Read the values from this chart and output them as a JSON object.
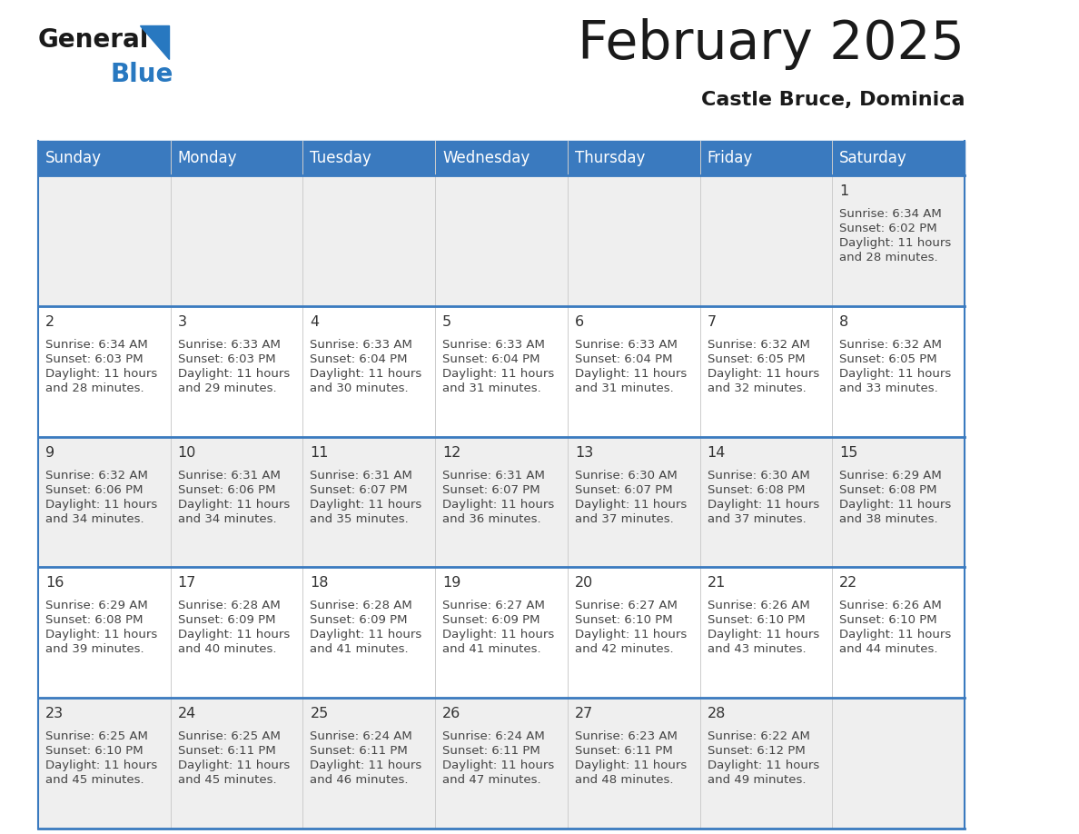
{
  "title": "February 2025",
  "subtitle": "Castle Bruce, Dominica",
  "days_of_week": [
    "Sunday",
    "Monday",
    "Tuesday",
    "Wednesday",
    "Thursday",
    "Friday",
    "Saturday"
  ],
  "header_bg": "#3a7abf",
  "header_text": "#ffffff",
  "row_bg_even": "#efefef",
  "row_bg_odd": "#ffffff",
  "border_color": "#3a7abf",
  "cell_divider_color": "#cccccc",
  "day_number_color": "#333333",
  "cell_text_color": "#444444",
  "title_color": "#1a1a1a",
  "subtitle_color": "#1a1a1a",
  "logo_black": "#1a1a1a",
  "logo_blue": "#2878c0",
  "logo_triangle": "#2878c0",
  "calendar": [
    [
      null,
      null,
      null,
      null,
      null,
      null,
      {
        "day": 1,
        "sunrise": "6:34 AM",
        "sunset": "6:02 PM",
        "daylight": "11 hours",
        "daylight2": "and 28 minutes."
      }
    ],
    [
      {
        "day": 2,
        "sunrise": "6:34 AM",
        "sunset": "6:03 PM",
        "daylight": "11 hours",
        "daylight2": "and 28 minutes."
      },
      {
        "day": 3,
        "sunrise": "6:33 AM",
        "sunset": "6:03 PM",
        "daylight": "11 hours",
        "daylight2": "and 29 minutes."
      },
      {
        "day": 4,
        "sunrise": "6:33 AM",
        "sunset": "6:04 PM",
        "daylight": "11 hours",
        "daylight2": "and 30 minutes."
      },
      {
        "day": 5,
        "sunrise": "6:33 AM",
        "sunset": "6:04 PM",
        "daylight": "11 hours",
        "daylight2": "and 31 minutes."
      },
      {
        "day": 6,
        "sunrise": "6:33 AM",
        "sunset": "6:04 PM",
        "daylight": "11 hours",
        "daylight2": "and 31 minutes."
      },
      {
        "day": 7,
        "sunrise": "6:32 AM",
        "sunset": "6:05 PM",
        "daylight": "11 hours",
        "daylight2": "and 32 minutes."
      },
      {
        "day": 8,
        "sunrise": "6:32 AM",
        "sunset": "6:05 PM",
        "daylight": "11 hours",
        "daylight2": "and 33 minutes."
      }
    ],
    [
      {
        "day": 9,
        "sunrise": "6:32 AM",
        "sunset": "6:06 PM",
        "daylight": "11 hours",
        "daylight2": "and 34 minutes."
      },
      {
        "day": 10,
        "sunrise": "6:31 AM",
        "sunset": "6:06 PM",
        "daylight": "11 hours",
        "daylight2": "and 34 minutes."
      },
      {
        "day": 11,
        "sunrise": "6:31 AM",
        "sunset": "6:07 PM",
        "daylight": "11 hours",
        "daylight2": "and 35 minutes."
      },
      {
        "day": 12,
        "sunrise": "6:31 AM",
        "sunset": "6:07 PM",
        "daylight": "11 hours",
        "daylight2": "and 36 minutes."
      },
      {
        "day": 13,
        "sunrise": "6:30 AM",
        "sunset": "6:07 PM",
        "daylight": "11 hours",
        "daylight2": "and 37 minutes."
      },
      {
        "day": 14,
        "sunrise": "6:30 AM",
        "sunset": "6:08 PM",
        "daylight": "11 hours",
        "daylight2": "and 37 minutes."
      },
      {
        "day": 15,
        "sunrise": "6:29 AM",
        "sunset": "6:08 PM",
        "daylight": "11 hours",
        "daylight2": "and 38 minutes."
      }
    ],
    [
      {
        "day": 16,
        "sunrise": "6:29 AM",
        "sunset": "6:08 PM",
        "daylight": "11 hours",
        "daylight2": "and 39 minutes."
      },
      {
        "day": 17,
        "sunrise": "6:28 AM",
        "sunset": "6:09 PM",
        "daylight": "11 hours",
        "daylight2": "and 40 minutes."
      },
      {
        "day": 18,
        "sunrise": "6:28 AM",
        "sunset": "6:09 PM",
        "daylight": "11 hours",
        "daylight2": "and 41 minutes."
      },
      {
        "day": 19,
        "sunrise": "6:27 AM",
        "sunset": "6:09 PM",
        "daylight": "11 hours",
        "daylight2": "and 41 minutes."
      },
      {
        "day": 20,
        "sunrise": "6:27 AM",
        "sunset": "6:10 PM",
        "daylight": "11 hours",
        "daylight2": "and 42 minutes."
      },
      {
        "day": 21,
        "sunrise": "6:26 AM",
        "sunset": "6:10 PM",
        "daylight": "11 hours",
        "daylight2": "and 43 minutes."
      },
      {
        "day": 22,
        "sunrise": "6:26 AM",
        "sunset": "6:10 PM",
        "daylight": "11 hours",
        "daylight2": "and 44 minutes."
      }
    ],
    [
      {
        "day": 23,
        "sunrise": "6:25 AM",
        "sunset": "6:10 PM",
        "daylight": "11 hours",
        "daylight2": "and 45 minutes."
      },
      {
        "day": 24,
        "sunrise": "6:25 AM",
        "sunset": "6:11 PM",
        "daylight": "11 hours",
        "daylight2": "and 45 minutes."
      },
      {
        "day": 25,
        "sunrise": "6:24 AM",
        "sunset": "6:11 PM",
        "daylight": "11 hours",
        "daylight2": "and 46 minutes."
      },
      {
        "day": 26,
        "sunrise": "6:24 AM",
        "sunset": "6:11 PM",
        "daylight": "11 hours",
        "daylight2": "and 47 minutes."
      },
      {
        "day": 27,
        "sunrise": "6:23 AM",
        "sunset": "6:11 PM",
        "daylight": "11 hours",
        "daylight2": "and 48 minutes."
      },
      {
        "day": 28,
        "sunrise": "6:22 AM",
        "sunset": "6:12 PM",
        "daylight": "11 hours",
        "daylight2": "and 49 minutes."
      },
      null
    ]
  ]
}
